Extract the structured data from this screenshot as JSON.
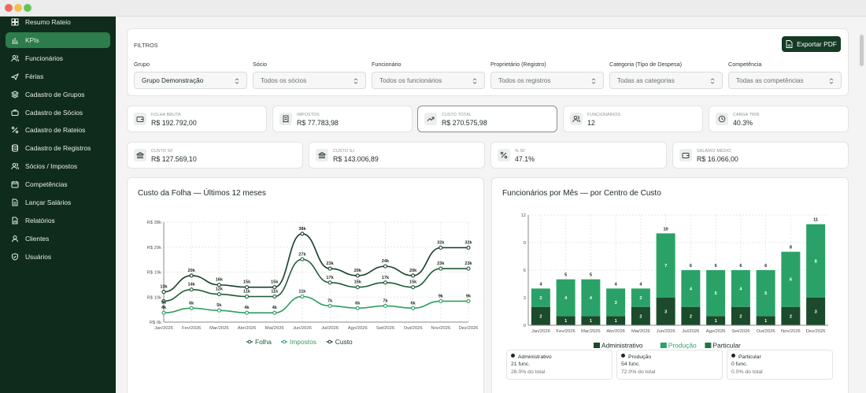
{
  "sidebar": {
    "items": [
      {
        "label": "Resumo Rateio",
        "icon": "grid-icon"
      },
      {
        "label": "KPIs",
        "icon": "bar-chart-icon",
        "active": true
      },
      {
        "label": "Funcionários",
        "icon": "users-icon"
      },
      {
        "label": "Férias",
        "icon": "plane-icon"
      },
      {
        "label": "Cadastro de Grupos",
        "icon": "layers-icon"
      },
      {
        "label": "Cadastro de Sócios",
        "icon": "briefcase-icon"
      },
      {
        "label": "Cadastro de Rateios",
        "icon": "percent-icon"
      },
      {
        "label": "Cadastro de Registros",
        "icon": "database-icon"
      },
      {
        "label": "Sócios / Impostos",
        "icon": "users-icon"
      },
      {
        "label": "Competências",
        "icon": "calendar-icon"
      },
      {
        "label": "Lançar Salários",
        "icon": "document-icon"
      },
      {
        "label": "Relatórios",
        "icon": "file-chart-icon"
      },
      {
        "label": "Clientes",
        "icon": "contacts-icon"
      },
      {
        "label": "Usuários",
        "icon": "shield-icon"
      }
    ]
  },
  "filters": {
    "title": "FILTROS",
    "export_label": "Exportar PDF",
    "fields": [
      {
        "label": "Grupo",
        "value": "Grupo Demonstração",
        "selected": true
      },
      {
        "label": "Sócio",
        "value": "Todos os sócios"
      },
      {
        "label": "Funcionário",
        "value": "Todos os funcionários"
      },
      {
        "label": "Proprietário (Registro)",
        "value": "Todos os registros"
      },
      {
        "label": "Categoria (Tipo de Despesa)",
        "value": "Todas as categorias"
      },
      {
        "label": "Competência",
        "value": "Todas as competências"
      }
    ]
  },
  "kpis_row1": [
    {
      "label": "FOLHA BRUTA",
      "value": "R$ 192.792,00",
      "icon": "wallet-icon"
    },
    {
      "label": "IMPOSTOS",
      "value": "R$ 77.783,98",
      "icon": "receipt-icon"
    },
    {
      "label": "CUSTO TOTAL",
      "value": "R$ 270.575,98",
      "icon": "trend-up-icon",
      "highlight": true
    },
    {
      "label": "FUNCIONÁRIOS",
      "value": "12",
      "icon": "users-icon"
    },
    {
      "label": "CARGA TRIB.",
      "value": "40.3%",
      "icon": "clock-icon"
    }
  ],
  "kpis_row2": [
    {
      "label": "CUSTO SF",
      "value": "R$ 127.569,10",
      "icon": "bank-icon"
    },
    {
      "label": "CUSTO SJ",
      "value": "R$ 143.006,89",
      "icon": "bank-icon"
    },
    {
      "label": "% SF",
      "value": "47.1%",
      "icon": "percent-icon"
    },
    {
      "label": "SALÁRIO MÉDIO",
      "value": "R$ 16.066,00",
      "icon": "wallet-icon"
    }
  ],
  "line_chart_title": "Custo da Folha — Últimos 12 meses",
  "bar_chart_title": "Funcionários por Mês — por Centro de Custo",
  "chart_data": [
    {
      "type": "line",
      "title": "Custo da Folha — Últimos 12 meses",
      "categories": [
        "Jan/2026",
        "Fev/2026",
        "Mar/2026",
        "Abr/2026",
        "Mai/2026",
        "Jun/2026",
        "Jul/2026",
        "Ago/2026",
        "Set/2026",
        "Out/2026",
        "Nov/2026",
        "Dez/2026"
      ],
      "y_ticks": [
        "R$ 0k",
        "R$ 10k",
        "R$ 19k",
        "R$ 29k",
        "R$ 38k"
      ],
      "ylim": [
        0,
        43
      ],
      "series": [
        {
          "name": "Folha",
          "color": "#1f5c38",
          "values": [
            9,
            14,
            12,
            11,
            11,
            27,
            17,
            15,
            17,
            15,
            23,
            23
          ],
          "labels": [
            "",
            "14k",
            "12k",
            "11k",
            "11k",
            "27k",
            "17k",
            "15k",
            "17k",
            "15k",
            "23k",
            "23k"
          ]
        },
        {
          "name": "Impostos",
          "color": "#2e9e5e",
          "values": [
            4,
            6,
            5,
            4,
            4,
            11,
            7,
            6,
            7,
            6,
            9,
            9
          ],
          "labels": [
            "4k",
            "6k",
            "5k",
            "4k",
            "4k",
            "11k",
            "7k",
            "6k",
            "7k",
            "6k",
            "9k",
            "9k"
          ]
        },
        {
          "name": "Custo",
          "color": "#173d27",
          "values": [
            13,
            20,
            16,
            15,
            15,
            38,
            23,
            20,
            24,
            20,
            32,
            32
          ],
          "labels": [
            "13k",
            "20k",
            "16k",
            "15k",
            "15k",
            "38k",
            "23k",
            "20k",
            "24k",
            "20k",
            "32k",
            "32k"
          ]
        }
      ],
      "extra_label": "9k",
      "legend": "bottom",
      "grid": true
    },
    {
      "type": "bar",
      "stacked": true,
      "title": "Funcionários por Mês — por Centro de Custo",
      "categories": [
        "Jan/2026",
        "Fev/2026",
        "Mar/2026",
        "Abr/2026",
        "Mai/2026",
        "Jun/2026",
        "Jul/2026",
        "Ago/2026",
        "Set/2026",
        "Out/2026",
        "Nov/2026",
        "Dez/2026"
      ],
      "y_ticks": [
        0,
        3,
        6,
        9,
        12
      ],
      "ylim": [
        0,
        12
      ],
      "series": [
        {
          "name": "Administrativo",
          "color": "#1c4a2c",
          "values": [
            2,
            1,
            1,
            1,
            2,
            3,
            2,
            1,
            2,
            1,
            2,
            3
          ]
        },
        {
          "name": "Produção",
          "color": "#2aa267",
          "values": [
            2,
            4,
            4,
            3,
            2,
            7,
            4,
            5,
            4,
            5,
            6,
            8
          ]
        },
        {
          "name": "Particular",
          "color": "#1e7a45",
          "values": [
            0,
            0,
            0,
            0,
            0,
            0,
            0,
            0,
            0,
            0,
            0,
            0
          ]
        }
      ],
      "totals": [
        4,
        5,
        5,
        4,
        4,
        10,
        6,
        6,
        6,
        6,
        8,
        11
      ],
      "legend": "bottom",
      "grid": true
    }
  ],
  "summary": [
    {
      "name": "Administrativo",
      "count": "21 func.",
      "pct": "28.0% do total"
    },
    {
      "name": "Produção",
      "count": "54 func.",
      "pct": "72.0% do total"
    },
    {
      "name": "Particular",
      "count": "0 func.",
      "pct": "0.0% do total"
    }
  ]
}
